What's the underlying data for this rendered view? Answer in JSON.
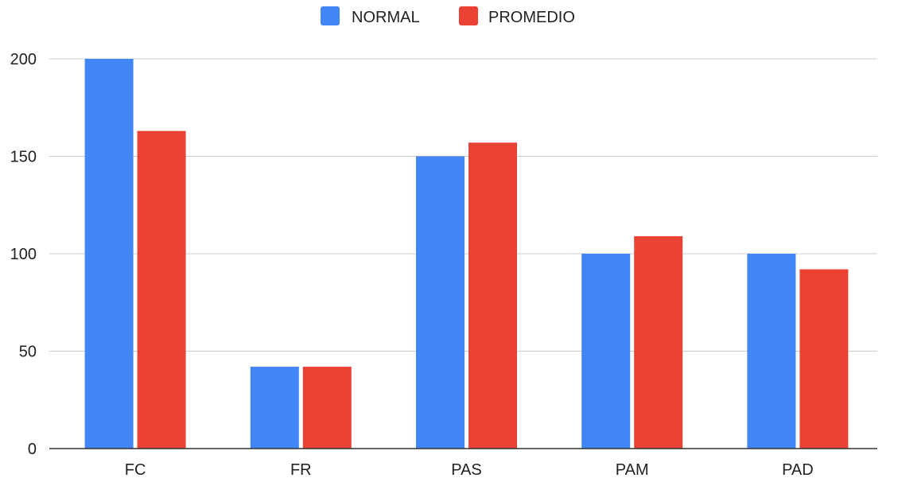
{
  "chart_data": {
    "type": "bar",
    "categories": [
      "FC",
      "FR",
      "PAS",
      "PAM",
      "PAD"
    ],
    "series": [
      {
        "name": "NORMAL",
        "color": "#4285F4",
        "values": [
          200,
          42,
          150,
          100,
          100
        ]
      },
      {
        "name": "PROMEDIO",
        "color": "#EA4335",
        "values": [
          163,
          42,
          157,
          109,
          92
        ]
      }
    ],
    "ylim": [
      0,
      200
    ],
    "yticks": [
      0,
      50,
      100,
      150,
      200
    ],
    "grid": true,
    "legend_position": "top",
    "title": "",
    "xlabel": "",
    "ylabel": ""
  }
}
